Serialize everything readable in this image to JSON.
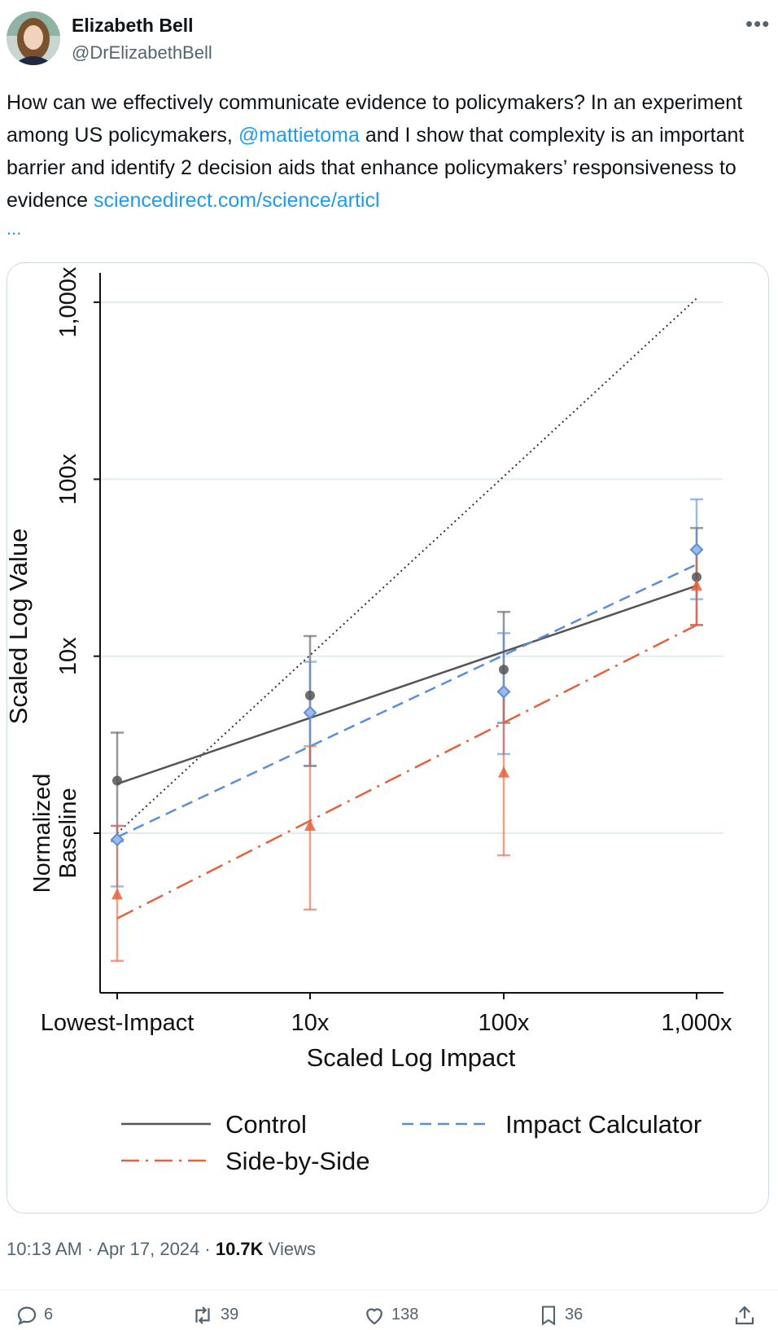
{
  "author": {
    "name": "Elizabeth Bell",
    "handle": "@DrElizabethBell"
  },
  "more_icon": "more-horizontal-icon",
  "tweet": {
    "text_parts": {
      "p1": "How can we effectively communicate evidence to policymakers? In an experiment among US policymakers, ",
      "mention": "@mattietoma",
      "p2": " and I show that complexity is an important barrier and identify 2 decision aids that enhance policymakers’ responsiveness to evidence ",
      "link": "sciencedirect.com/science/articl",
      "ellipsis": "..."
    }
  },
  "meta": {
    "time": "10:13 AM",
    "sep1": " · ",
    "date": "Apr 17, 2024",
    "sep2": " · ",
    "views_count": "10.7K",
    "views_label": " Views"
  },
  "actions": {
    "replies": "6",
    "retweets": "39",
    "likes": "138",
    "bookmarks": "36",
    "icons": [
      "reply-icon",
      "retweet-icon",
      "like-icon",
      "bookmark-icon",
      "share-icon"
    ]
  },
  "colors": {
    "accent": "#1d9bf0",
    "control": "#555555",
    "side_by_side": "#e8603c",
    "impact_calculator": "#5b8ed8"
  },
  "chart_data": {
    "type": "line",
    "xlabel": "Scaled Log Impact",
    "ylabel": "Scaled Log Value",
    "ylabel_baseline": "Normalized\nBaseline",
    "x_tick_labels": [
      "Lowest-Impact",
      "10x",
      "100x",
      "1,000x"
    ],
    "y_tick_labels": [
      "10x",
      "100x",
      "1,000x"
    ],
    "x": [
      1,
      10,
      100,
      1000
    ],
    "log_scale": true,
    "ylim": [
      0.1,
      1500
    ],
    "grid": true,
    "legend_position": "bottom",
    "reference_line": {
      "style": "dotted",
      "from": [
        1,
        1
      ],
      "to": [
        1000,
        1050
      ]
    },
    "series": [
      {
        "name": "Control",
        "style": "solid",
        "color": "#555555",
        "marker": "circle",
        "points": [
          1.98,
          6.0,
          8.4,
          28.0
        ],
        "ci_low": [
          0.9,
          2.4,
          4.2,
          15.0
        ],
        "ci_high": [
          3.7,
          13.0,
          17.8,
          53.0
        ],
        "fit": [
          1.9,
          25.0
        ]
      },
      {
        "name": "Impact Calculator",
        "style": "dashed",
        "color": "#5b8ed8",
        "marker": "diamond",
        "points": [
          0.92,
          4.8,
          6.3,
          40.0
        ],
        "ci_low": [
          0.5,
          2.4,
          2.8,
          21.0
        ],
        "ci_high": [
          1.1,
          9.3,
          13.5,
          77.0
        ],
        "fit": [
          0.95,
          33.0
        ]
      },
      {
        "name": "Side-by-Side",
        "style": "dashdot",
        "color": "#e8603c",
        "marker": "triangle",
        "points": [
          0.45,
          1.1,
          2.2,
          25.0
        ],
        "ci_low": [
          0.19,
          0.37,
          0.75,
          15.0
        ],
        "ci_high": [
          1.1,
          3.1,
          6.3,
          40.0
        ],
        "fit": [
          0.33,
          15.0
        ]
      }
    ]
  }
}
